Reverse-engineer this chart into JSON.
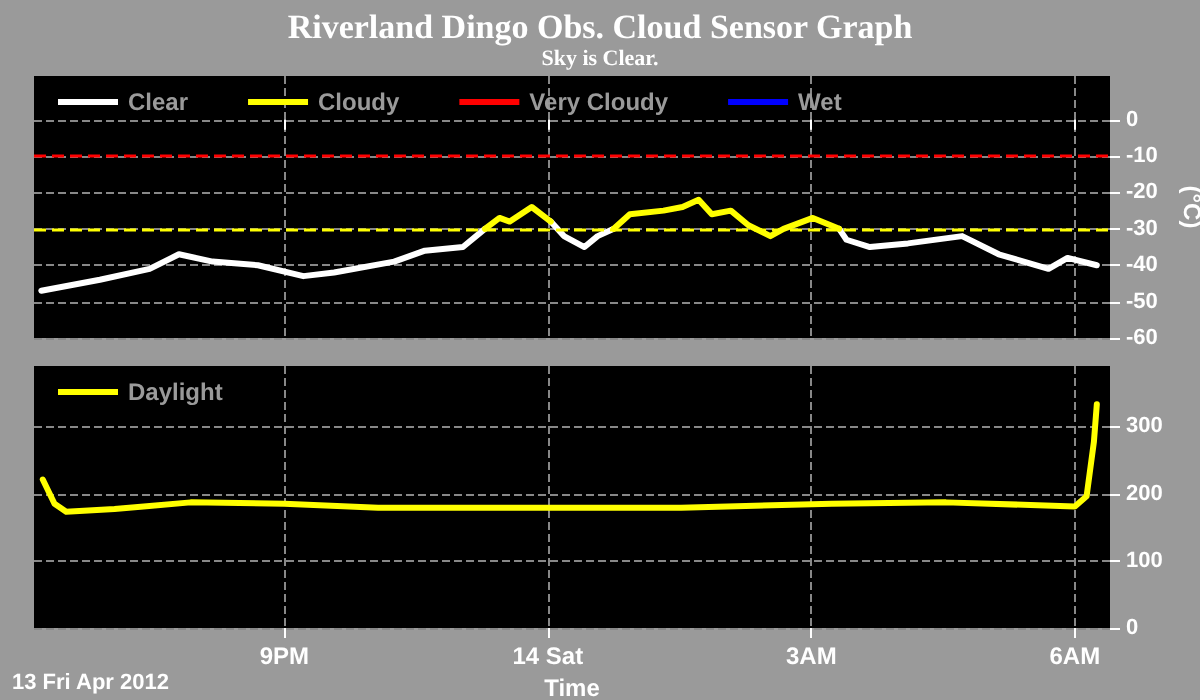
{
  "chart_data": [
    {
      "type": "line",
      "title": "Riverland Dingo Obs. Cloud Sensor Graph",
      "subtitle": "Sky is Clear.",
      "ylabel": "(°C)",
      "xlim": [
        "2012-04-13T18:09",
        "2012-04-14T06:24"
      ],
      "xticks": [
        {
          "value": "2012-04-13T21:00",
          "label": null
        },
        {
          "value": "2012-04-14T00:00",
          "label": null
        },
        {
          "value": "2012-04-14T03:00",
          "label": null
        },
        {
          "value": "2012-04-14T06:00",
          "label": null
        }
      ],
      "ylim": [
        -60,
        12
      ],
      "yticks": [
        -60,
        -50,
        -40,
        -30,
        -20,
        -10,
        0
      ],
      "tick_labels": "y",
      "grid": true,
      "legend": "top left",
      "marker": "none",
      "line_style": "solid",
      "ref_lines": [
        {
          "axis": "y",
          "value": -10,
          "color": "#ff0000",
          "line_style": "dashed"
        },
        {
          "axis": "y",
          "value": -30,
          "color": "#ffff00",
          "line_style": "dashed"
        }
      ],
      "series": [
        {
          "name": "Clear",
          "color": "#ffffff",
          "x": [
            "2012-04-13T18:14",
            "2012-04-13T18:54",
            "2012-04-13T19:28",
            "2012-04-13T19:48",
            "2012-04-13T20:11",
            "2012-04-13T20:42",
            "2012-04-13T21:13",
            "2012-04-13T21:34",
            "2012-04-13T22:15",
            "2012-04-13T22:36",
            "2012-04-13T23:02",
            "2012-04-13T23:17",
            "2012-04-13T23:30",
            "2012-04-14T00:02",
            "2012-04-14T00:11",
            "2012-04-14T00:25",
            "2012-04-14T00:34",
            "2012-04-14T00:45",
            "2012-04-14T00:48",
            "2012-04-14T03:19",
            "2012-04-14T03:24",
            "2012-04-14T03:40",
            "2012-04-14T04:06",
            "2012-04-14T04:43",
            "2012-04-14T05:08",
            "2012-04-14T05:42",
            "2012-04-14T05:55",
            "2012-04-14T06:15"
          ],
          "values": [
            -47,
            -44,
            -41,
            -37,
            -39,
            -40,
            -43,
            -42,
            -39,
            -36,
            -35,
            -30,
            null,
            -28,
            -32,
            -35,
            -32,
            -30,
            null,
            -30,
            -33,
            -35,
            -34,
            -32,
            -37,
            -41,
            -38,
            -40
          ]
        },
        {
          "name": "Cloudy",
          "color": "#ffff00",
          "x": [
            "2012-04-13T23:17",
            "2012-04-13T23:27",
            "2012-04-13T23:34",
            "2012-04-13T23:49",
            "2012-04-14T00:02",
            "2012-04-14T00:30",
            "2012-04-14T00:45",
            "2012-04-14T00:56",
            "2012-04-14T01:19",
            "2012-04-14T01:32",
            "2012-04-14T01:43",
            "2012-04-14T01:52",
            "2012-04-14T02:05",
            "2012-04-14T02:17",
            "2012-04-14T02:32",
            "2012-04-14T02:41",
            "2012-04-14T03:01",
            "2012-04-14T03:19"
          ],
          "values": [
            -30,
            -27,
            -28,
            -24,
            -28,
            null,
            -30,
            -26,
            -25,
            -24,
            -22,
            -26,
            -25,
            -29,
            -32,
            -30,
            -27,
            -30
          ]
        },
        {
          "name": "Very Cloudy",
          "color": "#ff0000"
        },
        {
          "name": "Wet",
          "color": "#0000ff"
        }
      ]
    },
    {
      "type": "line",
      "xlabel": "Time",
      "annotations": [
        "13 Fri Apr 2012"
      ],
      "xlim": [
        "2012-04-13T18:09",
        "2012-04-14T06:24"
      ],
      "xticks": [
        {
          "value": "2012-04-13T21:00",
          "label": "9PM"
        },
        {
          "value": "2012-04-14T00:00",
          "label": "14 Sat"
        },
        {
          "value": "2012-04-14T03:00",
          "label": "3AM"
        },
        {
          "value": "2012-04-14T06:00",
          "label": "6AM"
        }
      ],
      "ylim": [
        0,
        390
      ],
      "yticks": [
        0,
        100,
        200,
        300
      ],
      "grid": true,
      "legend": "top left",
      "marker": "none",
      "line_style": "solid",
      "series": [
        {
          "name": "Daylight",
          "color": "#ffff00",
          "x": [
            "2012-04-13T18:15",
            "2012-04-13T18:23",
            "2012-04-13T18:31",
            "2012-04-13T19:04",
            "2012-04-13T19:56",
            "2012-04-13T21:00",
            "2012-04-13T22:04",
            "2012-04-14T00:00",
            "2012-04-14T01:31",
            "2012-04-14T03:14",
            "2012-04-14T04:32",
            "2012-04-14T06:00",
            "2012-04-14T06:08",
            "2012-04-14T06:13",
            "2012-04-14T06:15"
          ],
          "values": [
            221,
            185,
            173,
            177,
            187,
            185,
            179,
            179,
            179,
            185,
            187,
            181,
            196,
            277,
            333
          ]
        }
      ]
    }
  ]
}
